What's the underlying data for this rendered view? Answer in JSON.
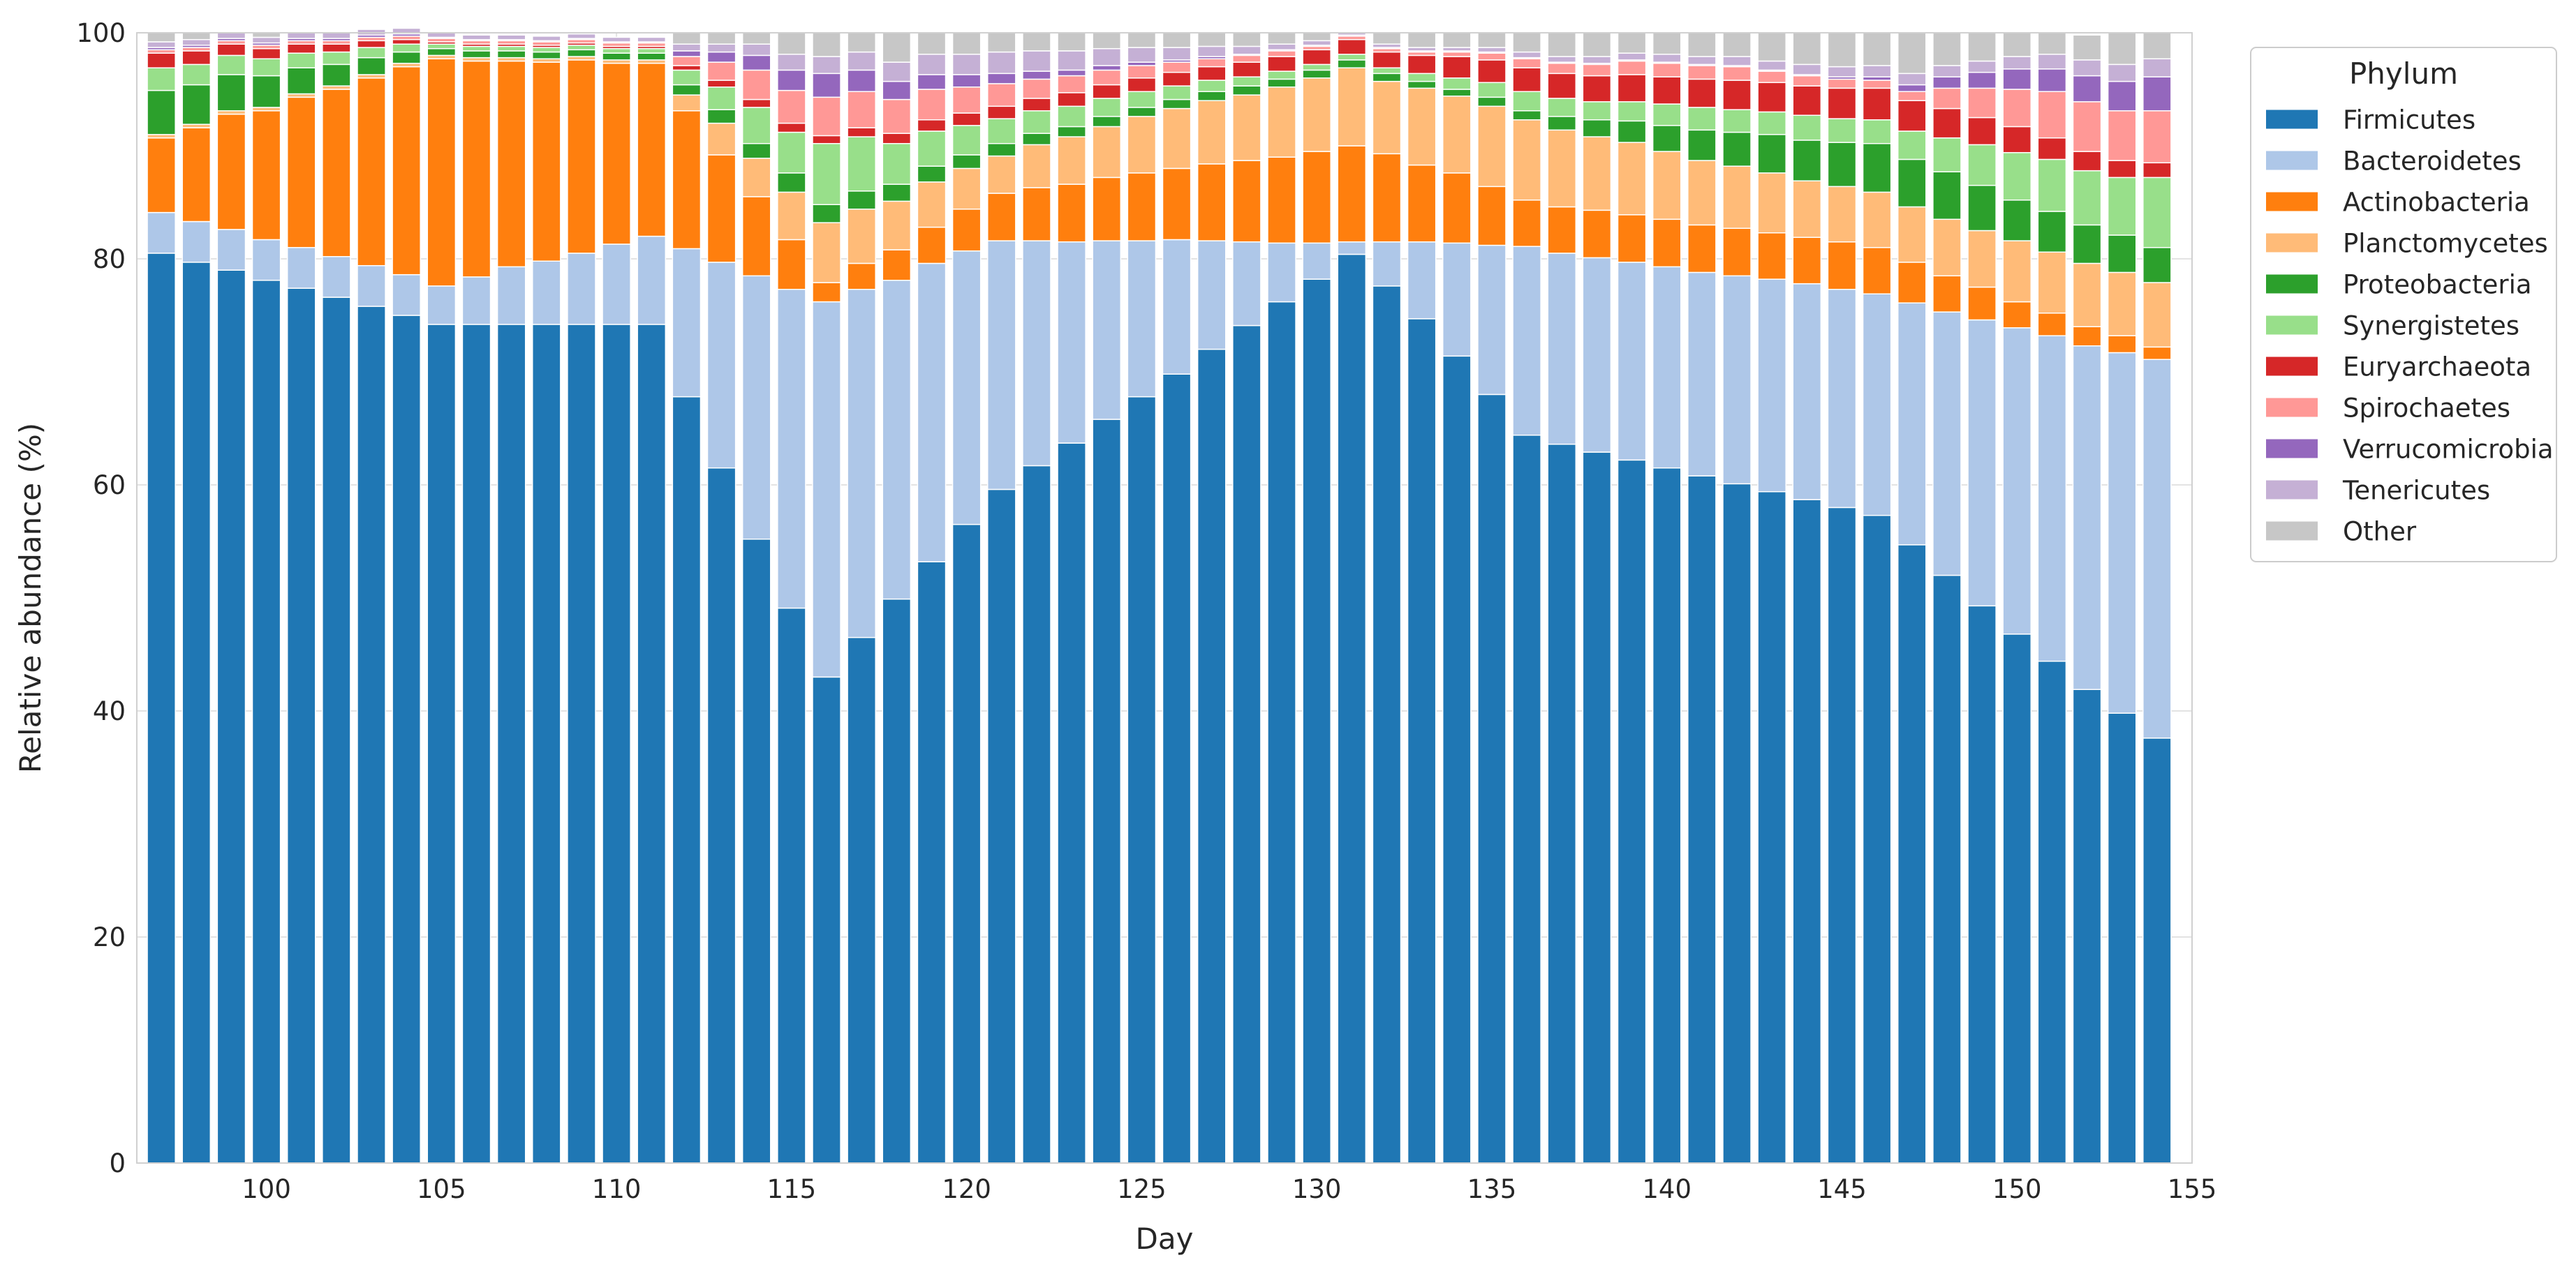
{
  "chart_data": {
    "type": "bar",
    "stacked": true,
    "title": "",
    "xlabel": "Day",
    "ylabel": "Relative abundance (%)",
    "xlim": [
      96.3,
      155
    ],
    "ylim": [
      0,
      100
    ],
    "x_ticks": [
      100,
      105,
      110,
      115,
      120,
      125,
      130,
      135,
      140,
      145,
      150,
      155
    ],
    "y_ticks": [
      0,
      20,
      40,
      60,
      80,
      100
    ],
    "grid": true,
    "legend": {
      "title": "Phylum",
      "position": "right, outside top"
    },
    "x": [
      97,
      98,
      99,
      100,
      101,
      102,
      103,
      104,
      105,
      106,
      107,
      108,
      109,
      110,
      111,
      112,
      113,
      114,
      115,
      116,
      117,
      118,
      119,
      120,
      121,
      122,
      123,
      124,
      125,
      126,
      127,
      128,
      129,
      130,
      131,
      132,
      133,
      134,
      135,
      136,
      137,
      138,
      139,
      140,
      141,
      142,
      143,
      144,
      145,
      146,
      147,
      148,
      149,
      150,
      151,
      152,
      153,
      154
    ],
    "series": [
      {
        "name": "Firmicutes",
        "color": "#1f77b4",
        "values": [
          80.5,
          79.7,
          79.0,
          78.1,
          77.4,
          76.6,
          75.8,
          75.0,
          74.2,
          74.2,
          74.2,
          74.2,
          74.2,
          74.2,
          74.2,
          67.8,
          61.5,
          55.2,
          49.1,
          43.0,
          46.5,
          49.9,
          53.2,
          56.5,
          59.6,
          61.7,
          63.7,
          65.8,
          67.8,
          69.8,
          72.0,
          74.1,
          76.2,
          78.2,
          80.4,
          77.6,
          74.7,
          71.4,
          68.0,
          64.4,
          63.6,
          62.9,
          62.2,
          61.5,
          60.8,
          60.1,
          59.4,
          58.7,
          58.0,
          57.3,
          54.7,
          52.0,
          49.3,
          46.8,
          44.4,
          41.9,
          39.8,
          37.6
        ]
      },
      {
        "name": "Bacteroidetes",
        "color": "#aec7e8",
        "values": [
          3.6,
          3.6,
          3.6,
          3.6,
          3.6,
          3.6,
          3.6,
          3.6,
          3.4,
          4.2,
          5.1,
          5.6,
          6.3,
          7.1,
          7.8,
          13.1,
          18.2,
          23.3,
          28.2,
          33.2,
          30.8,
          28.2,
          26.4,
          24.2,
          22.0,
          19.9,
          17.8,
          15.8,
          13.8,
          11.9,
          9.6,
          7.4,
          5.2,
          3.2,
          1.1,
          3.9,
          6.8,
          10.0,
          13.2,
          16.7,
          16.9,
          17.2,
          17.5,
          17.8,
          18.0,
          18.4,
          18.8,
          19.1,
          19.3,
          19.6,
          21.4,
          23.3,
          25.3,
          27.1,
          28.8,
          30.4,
          31.9,
          33.5
        ]
      },
      {
        "name": "Actinobacteria",
        "color": "#ff7f0e",
        "values": [
          6.6,
          8.3,
          10.2,
          11.4,
          13.3,
          14.8,
          16.6,
          18.4,
          20.1,
          19.1,
          18.2,
          17.6,
          17.1,
          16.0,
          15.3,
          12.2,
          9.5,
          7.0,
          4.4,
          1.7,
          2.3,
          2.7,
          3.2,
          3.7,
          4.2,
          4.7,
          5.1,
          5.6,
          6.0,
          6.3,
          6.8,
          7.2,
          7.6,
          8.1,
          8.5,
          7.8,
          6.8,
          6.2,
          5.2,
          4.1,
          4.1,
          4.2,
          4.2,
          4.2,
          4.2,
          4.2,
          4.1,
          4.1,
          4.2,
          4.1,
          3.6,
          3.2,
          2.9,
          2.3,
          2.0,
          1.7,
          1.5,
          1.1
        ]
      },
      {
        "name": "Planctomycetes",
        "color": "#ffbb78",
        "values": [
          0.3,
          0.3,
          0.3,
          0.3,
          0.3,
          0.3,
          0.3,
          0.3,
          0.3,
          0.3,
          0.3,
          0.3,
          0.3,
          0.3,
          0.3,
          1.4,
          2.8,
          3.4,
          4.2,
          5.3,
          4.8,
          4.3,
          4.0,
          3.6,
          3.3,
          3.8,
          4.2,
          4.5,
          5.0,
          5.3,
          5.6,
          5.8,
          6.2,
          6.5,
          6.9,
          6.4,
          6.8,
          6.8,
          7.1,
          7.1,
          6.8,
          6.5,
          6.4,
          6.0,
          5.7,
          5.5,
          5.3,
          5.0,
          4.9,
          4.9,
          4.9,
          5.0,
          5.0,
          5.4,
          5.4,
          5.6,
          5.6,
          5.7
        ]
      },
      {
        "name": "Proteobacteria",
        "color": "#2ca02c",
        "values": [
          3.9,
          3.5,
          3.2,
          2.8,
          2.3,
          1.9,
          1.5,
          1.0,
          0.6,
          0.6,
          0.6,
          0.6,
          0.6,
          0.6,
          0.6,
          0.9,
          1.2,
          1.3,
          1.7,
          1.6,
          1.6,
          1.5,
          1.4,
          1.2,
          1.1,
          1.0,
          0.9,
          0.9,
          0.8,
          0.8,
          0.8,
          0.8,
          0.7,
          0.7,
          0.7,
          0.7,
          0.6,
          0.6,
          0.8,
          0.8,
          1.2,
          1.5,
          1.9,
          2.3,
          2.7,
          3.0,
          3.4,
          3.6,
          3.9,
          4.3,
          4.2,
          4.2,
          4.0,
          3.6,
          3.6,
          3.4,
          3.3,
          3.1
        ]
      },
      {
        "name": "Synergistetes",
        "color": "#98df8a",
        "values": [
          2.0,
          1.8,
          1.7,
          1.5,
          1.3,
          1.1,
          0.9,
          0.7,
          0.4,
          0.4,
          0.4,
          0.4,
          0.4,
          0.4,
          0.4,
          1.3,
          2.0,
          3.2,
          3.6,
          5.4,
          4.8,
          3.6,
          3.1,
          2.6,
          2.2,
          2.0,
          1.8,
          1.6,
          1.4,
          1.2,
          1.0,
          0.8,
          0.7,
          0.5,
          0.5,
          0.5,
          0.7,
          1.0,
          1.3,
          1.7,
          1.6,
          1.6,
          1.7,
          1.9,
          2.0,
          2.0,
          2.0,
          2.2,
          2.1,
          2.1,
          2.5,
          3.0,
          3.6,
          4.2,
          4.6,
          4.8,
          5.1,
          6.2
        ]
      },
      {
        "name": "Euryarchaeota",
        "color": "#d62728",
        "values": [
          1.3,
          1.2,
          1.0,
          0.9,
          0.8,
          0.7,
          0.6,
          0.4,
          0.2,
          0.2,
          0.2,
          0.2,
          0.2,
          0.2,
          0.2,
          0.4,
          0.6,
          0.7,
          0.8,
          0.7,
          0.8,
          0.9,
          1.0,
          1.1,
          1.1,
          1.1,
          1.2,
          1.2,
          1.2,
          1.2,
          1.2,
          1.3,
          1.3,
          1.3,
          1.3,
          1.4,
          1.6,
          1.9,
          2.0,
          2.1,
          2.2,
          2.3,
          2.4,
          2.4,
          2.5,
          2.6,
          2.6,
          2.6,
          2.7,
          2.8,
          2.7,
          2.6,
          2.4,
          2.3,
          1.9,
          1.7,
          1.5,
          1.3
        ]
      },
      {
        "name": "Spirochaetes",
        "color": "#ff9896",
        "values": [
          0.3,
          0.3,
          0.3,
          0.3,
          0.3,
          0.3,
          0.3,
          0.3,
          0.3,
          0.3,
          0.3,
          0.3,
          0.3,
          0.3,
          0.3,
          0.8,
          1.6,
          2.6,
          2.9,
          3.4,
          3.2,
          3.0,
          2.7,
          2.3,
          2.0,
          1.7,
          1.5,
          1.3,
          1.1,
          0.9,
          0.7,
          0.6,
          0.5,
          0.3,
          0.3,
          0.3,
          0.3,
          0.4,
          0.6,
          0.8,
          0.9,
          1.0,
          1.2,
          1.2,
          1.2,
          1.2,
          1.0,
          0.9,
          0.8,
          0.7,
          0.8,
          1.8,
          2.6,
          3.3,
          4.1,
          4.4,
          4.4,
          4.6
        ]
      },
      {
        "name": "Verrucomicrobia",
        "color": "#9467bd",
        "values": [
          0.2,
          0.2,
          0.2,
          0.2,
          0.2,
          0.2,
          0.2,
          0.2,
          0.1,
          0.1,
          0.1,
          0.1,
          0.1,
          0.1,
          0.1,
          0.5,
          0.9,
          1.3,
          1.8,
          2.1,
          1.9,
          1.6,
          1.3,
          1.1,
          0.9,
          0.7,
          0.5,
          0.4,
          0.3,
          0.2,
          0.2,
          0.1,
          0.1,
          0.1,
          0.1,
          0.1,
          0.1,
          0.1,
          0.1,
          0.1,
          0.1,
          0.1,
          0.1,
          0.1,
          0.1,
          0.1,
          0.1,
          0.1,
          0.2,
          0.3,
          0.6,
          1.0,
          1.4,
          1.8,
          2.0,
          2.3,
          2.6,
          3.0
        ]
      },
      {
        "name": "Tenericutes",
        "color": "#c5b0d5",
        "values": [
          0.5,
          0.5,
          0.5,
          0.5,
          0.5,
          0.5,
          0.5,
          0.5,
          0.4,
          0.4,
          0.4,
          0.4,
          0.4,
          0.4,
          0.4,
          0.6,
          0.7,
          1.0,
          1.4,
          1.5,
          1.6,
          1.7,
          1.8,
          1.8,
          1.9,
          1.8,
          1.7,
          1.5,
          1.3,
          1.1,
          0.9,
          0.7,
          0.5,
          0.4,
          0.3,
          0.3,
          0.3,
          0.3,
          0.4,
          0.5,
          0.5,
          0.6,
          0.6,
          0.7,
          0.7,
          0.8,
          0.8,
          0.9,
          0.9,
          1.0,
          1.0,
          1.0,
          1.0,
          1.1,
          1.3,
          1.4,
          1.5,
          1.6
        ]
      },
      {
        "name": "Other",
        "color": "#c7c7c7",
        "values": [
          0.8,
          0.6,
          0.0,
          0.4,
          0.0,
          0.0,
          0.0,
          0.0,
          0.0,
          0.0,
          0.0,
          0.0,
          0.0,
          0.0,
          0.0,
          1.0,
          1.0,
          1.0,
          1.9,
          2.1,
          1.7,
          2.6,
          1.9,
          1.9,
          1.7,
          1.6,
          1.6,
          1.4,
          1.3,
          1.3,
          1.2,
          1.2,
          1.0,
          0.7,
          0.0,
          1.0,
          1.3,
          1.3,
          1.3,
          1.7,
          2.1,
          2.1,
          1.8,
          1.9,
          2.1,
          2.1,
          2.5,
          2.8,
          3.0,
          2.9,
          3.6,
          2.9,
          2.5,
          2.1,
          1.9,
          2.2,
          2.8,
          2.3
        ]
      }
    ]
  }
}
